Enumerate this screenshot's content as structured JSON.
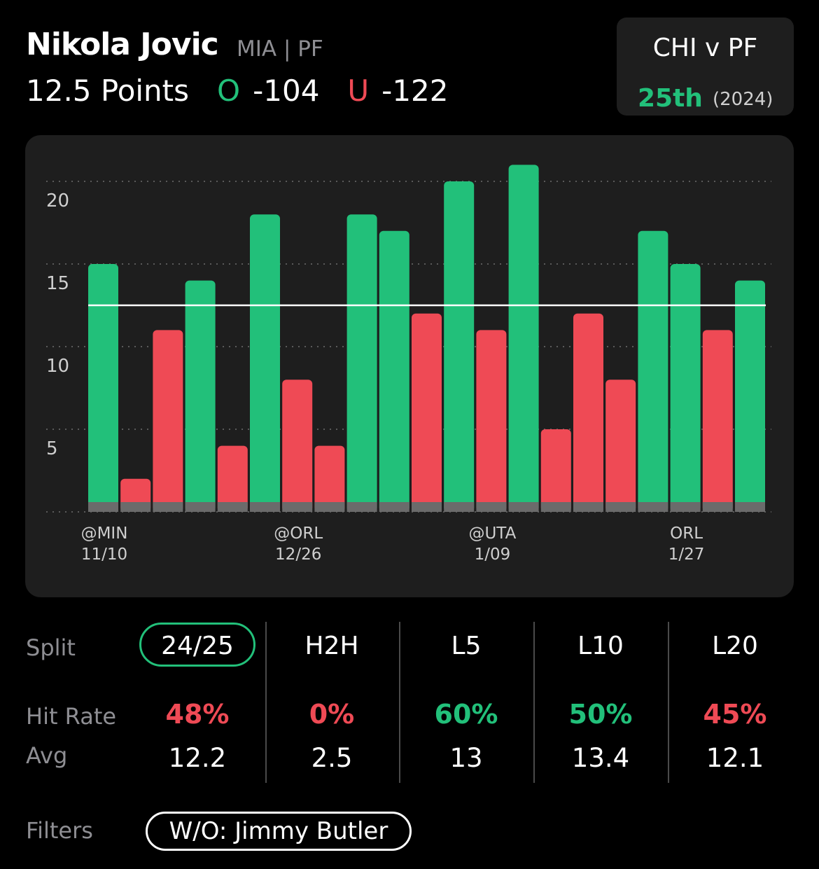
{
  "player": {
    "name": "Nikola Jovic",
    "team_pos": "MIA | PF"
  },
  "line": {
    "text": "12.5 Points",
    "over_letter": "O",
    "over_odds": "-104",
    "under_letter": "U",
    "under_odds": "-122"
  },
  "matchup": {
    "title": "CHI v PF",
    "rank": "25th",
    "year": "(2024)"
  },
  "colors": {
    "over": "#22c07a",
    "under": "#ef4a55",
    "card": "#1e1e1e"
  },
  "chart_data": {
    "type": "bar",
    "line_value": 12.5,
    "ylim": [
      0,
      21
    ],
    "yticks": [
      5,
      10,
      15,
      20
    ],
    "values": [
      15,
      2,
      11,
      14,
      4,
      18,
      8,
      4,
      18,
      17,
      12,
      20,
      11,
      21,
      5,
      12,
      8,
      17,
      15,
      11,
      14
    ],
    "x_labels": [
      {
        "index": 0,
        "opp": "@MIN",
        "date": "11/10"
      },
      {
        "index": 6,
        "opp": "@ORL",
        "date": "12/26"
      },
      {
        "index": 12,
        "opp": "@UTA",
        "date": "1/09"
      },
      {
        "index": 18,
        "opp": "ORL",
        "date": "1/27"
      }
    ],
    "grid": true
  },
  "splits": {
    "row_labels": {
      "split": "Split",
      "hit_rate": "Hit Rate",
      "avg": "Avg"
    },
    "columns": [
      {
        "label": "24/25",
        "hit_rate": "48%",
        "hit_color": "red",
        "avg": "12.2",
        "selected": true
      },
      {
        "label": "H2H",
        "hit_rate": "0%",
        "hit_color": "red",
        "avg": "2.5"
      },
      {
        "label": "L5",
        "hit_rate": "60%",
        "hit_color": "green",
        "avg": "13"
      },
      {
        "label": "L10",
        "hit_rate": "50%",
        "hit_color": "green",
        "avg": "13.4"
      },
      {
        "label": "L20",
        "hit_rate": "45%",
        "hit_color": "red",
        "avg": "12.1"
      }
    ]
  },
  "filters": {
    "label": "Filters",
    "active": "W/O: Jimmy Butler"
  }
}
